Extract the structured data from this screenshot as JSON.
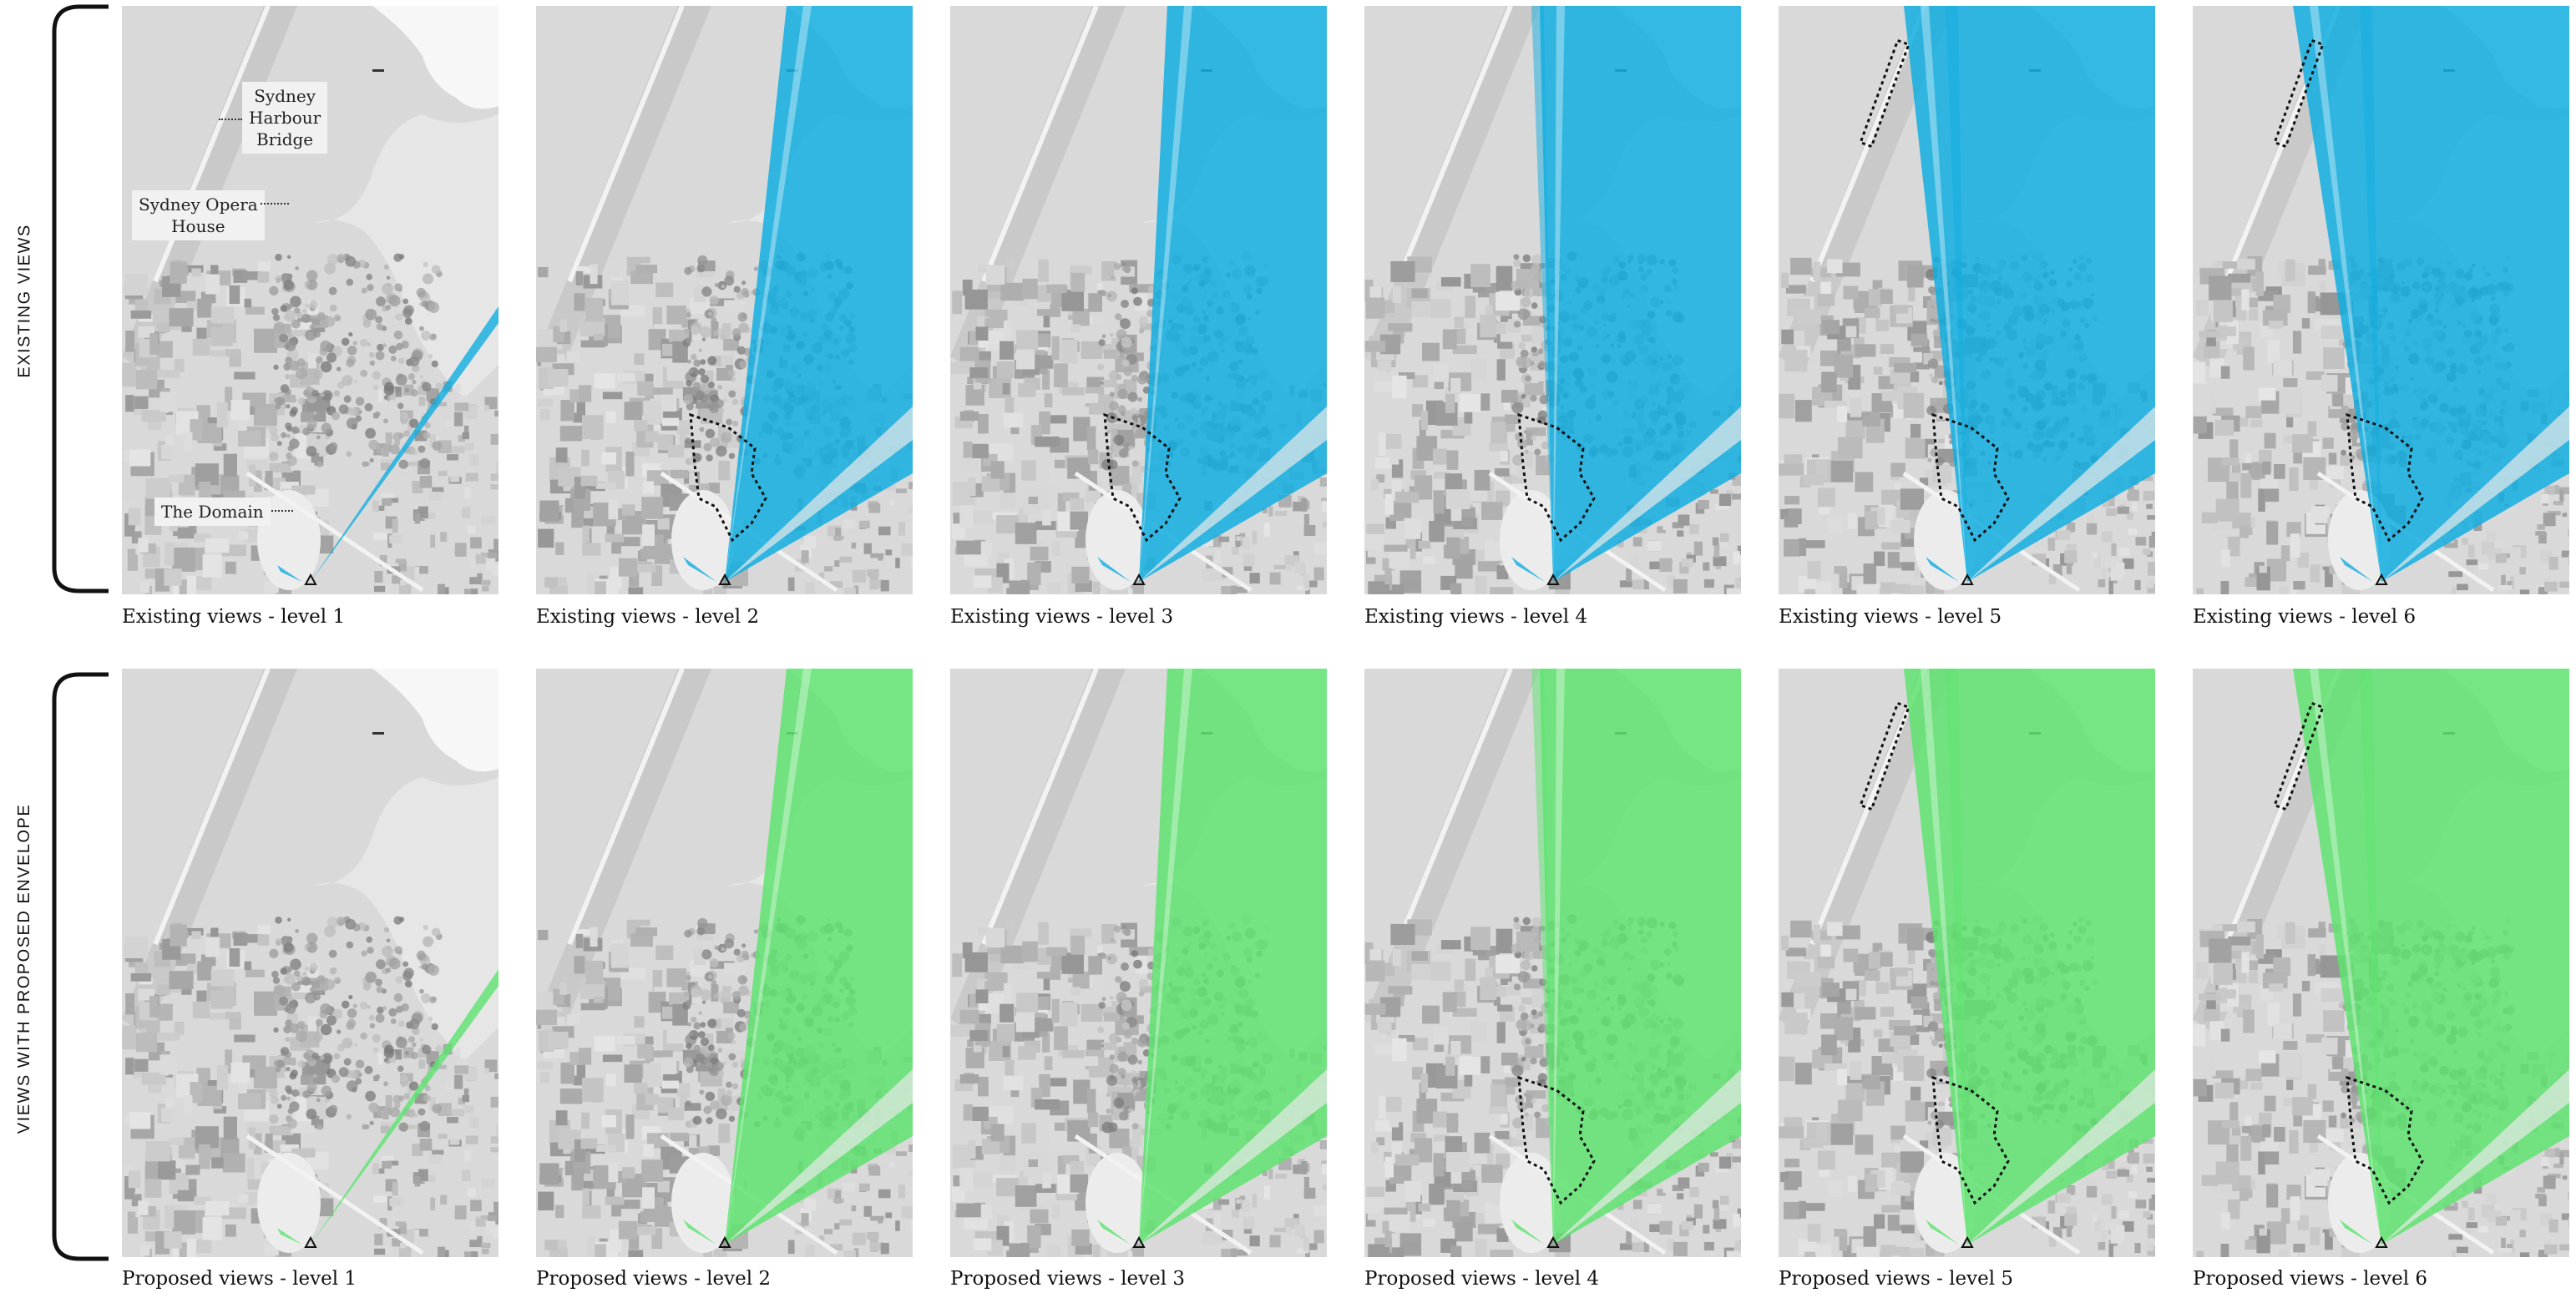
{
  "rows": [
    {
      "label": "EXISTING VIEWS",
      "cone_color": "#12aee0",
      "captions": [
        "Existing views - level 1",
        "Existing views - level 2",
        "Existing views - level 3",
        "Existing views - level 4",
        "Existing views - level 5",
        "Existing views - level 6"
      ]
    },
    {
      "label": "VIEWS WITH PROPOSED ENVELOPE",
      "cone_color": "#5ee36f",
      "captions": [
        "Proposed views - level 1",
        "Proposed views - level 2",
        "Proposed views - level 3",
        "Proposed views - level 4",
        "Proposed views - level 5",
        "Proposed views - level 6"
      ]
    }
  ],
  "map_labels": {
    "bridge": "Sydney Harbour Bridge",
    "bridge_lines": [
      "Sydney",
      "Harbour",
      "Bridge"
    ],
    "opera": "Sydney Opera House",
    "opera_lines": [
      "Sydney Opera",
      "House"
    ],
    "domain": "The Domain"
  }
}
